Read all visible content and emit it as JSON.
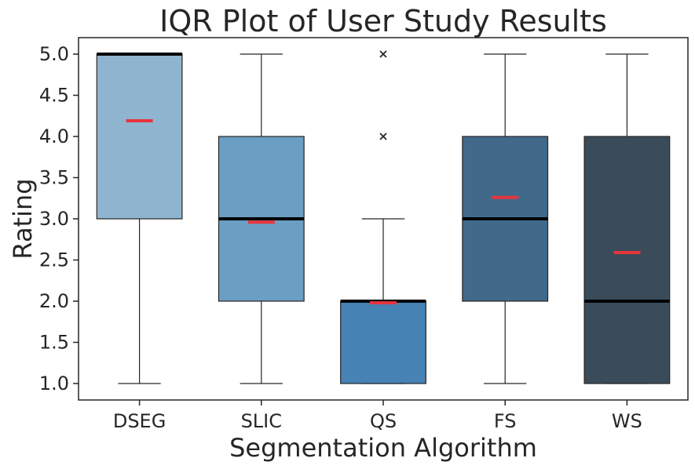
{
  "chart_data": {
    "type": "boxplot",
    "title": "IQR Plot of User Study Results",
    "xlabel": "Segmentation Algorithm",
    "ylabel": "Rating",
    "ylim": [
      0.8,
      5.2
    ],
    "yticks": [
      1.0,
      1.5,
      2.0,
      2.5,
      3.0,
      3.5,
      4.0,
      4.5,
      5.0
    ],
    "ytick_labels": [
      "1.0",
      "1.5",
      "2.0",
      "2.5",
      "3.0",
      "3.5",
      "4.0",
      "4.5",
      "5.0"
    ],
    "categories": [
      "DSEG",
      "SLIC",
      "QS",
      "FS",
      "WS"
    ],
    "boxes": [
      {
        "name": "DSEG",
        "whisker_low": 1.0,
        "q1": 3.0,
        "median": 5.0,
        "q3": 5.0,
        "whisker_high": 5.0,
        "mean": 4.19,
        "outliers": [],
        "color": "#8fb4d0"
      },
      {
        "name": "SLIC",
        "whisker_low": 1.0,
        "q1": 2.0,
        "median": 3.0,
        "q3": 4.0,
        "whisker_high": 5.0,
        "mean": 2.96,
        "outliers": [],
        "color": "#6a9ec2"
      },
      {
        "name": "QS",
        "whisker_low": 1.0,
        "q1": 1.0,
        "median": 2.0,
        "q3": 2.0,
        "whisker_high": 3.0,
        "mean": 1.98,
        "outliers": [
          4.0,
          5.0
        ],
        "color": "#4682b4"
      },
      {
        "name": "FS",
        "whisker_low": 1.0,
        "q1": 2.0,
        "median": 3.0,
        "q3": 4.0,
        "whisker_high": 5.0,
        "mean": 3.26,
        "outliers": [],
        "color": "#416a8a"
      },
      {
        "name": "WS",
        "whisker_low": 1.0,
        "q1": 1.0,
        "median": 2.0,
        "q3": 4.0,
        "whisker_high": 5.0,
        "mean": 2.59,
        "outliers": [],
        "color": "#3a4b5a"
      }
    ],
    "median_color": "#000000",
    "mean_color": "#e8343c",
    "grid": false
  }
}
